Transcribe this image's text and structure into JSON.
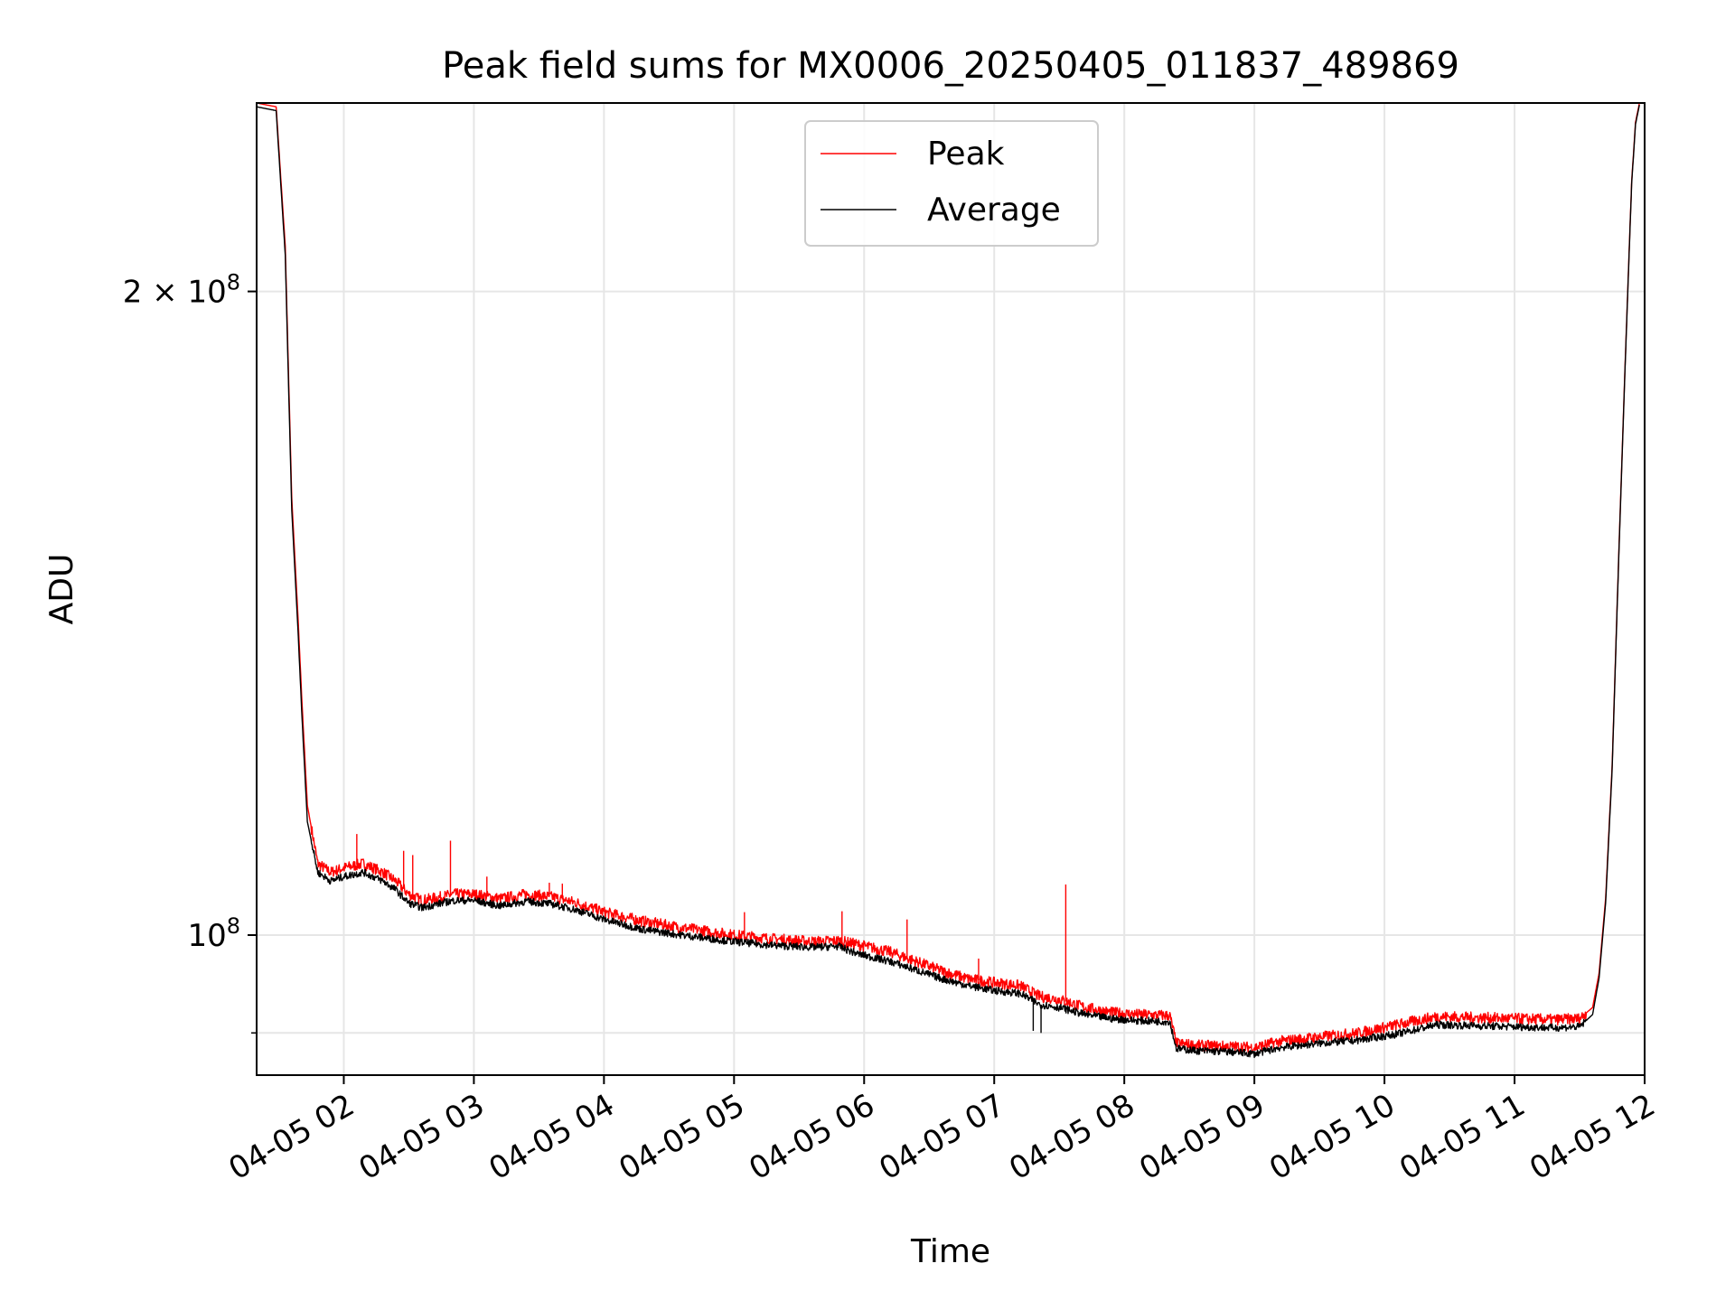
{
  "chart_data": {
    "type": "line",
    "title": "Peak field sums for MX0006_20250405_011837_489869",
    "xlabel": "Time",
    "ylabel": "ADU",
    "yscale": "log",
    "grid": true,
    "legend_position": "top-center",
    "xlim_hours": [
      1.33,
      12.0
    ],
    "ylim": [
      86000000,
      245000000
    ],
    "x_ticks": [
      {
        "value": 2,
        "label": "04-05 02"
      },
      {
        "value": 3,
        "label": "04-05 03"
      },
      {
        "value": 4,
        "label": "04-05 04"
      },
      {
        "value": 5,
        "label": "04-05 05"
      },
      {
        "value": 6,
        "label": "04-05 06"
      },
      {
        "value": 7,
        "label": "04-05 07"
      },
      {
        "value": 8,
        "label": "04-05 08"
      },
      {
        "value": 9,
        "label": "04-05 09"
      },
      {
        "value": 10,
        "label": "04-05 10"
      },
      {
        "value": 11,
        "label": "04-05 11"
      },
      {
        "value": 12,
        "label": "04-05 12"
      }
    ],
    "y_ticks": [
      {
        "value": 100000000,
        "base": "10",
        "exp": "8",
        "mantissa": ""
      },
      {
        "value": 200000000,
        "base": "10",
        "exp": "8",
        "mantissa": "2 × "
      }
    ],
    "y_minor_ticks": [
      90000000
    ],
    "series": [
      {
        "name": "Peak",
        "color": "#ff0000",
        "x_hours": [
          1.33,
          1.48,
          1.55,
          1.6,
          1.65,
          1.68,
          1.72,
          1.8,
          1.9,
          2.0,
          2.15,
          2.3,
          2.4,
          2.5,
          2.6,
          2.75,
          2.85,
          3.0,
          3.2,
          3.4,
          3.6,
          3.8,
          4.0,
          4.3,
          4.6,
          5.0,
          5.3,
          5.6,
          5.8,
          5.95,
          6.2,
          6.4,
          6.6,
          6.8,
          7.0,
          7.2,
          7.35,
          7.5,
          7.7,
          7.9,
          8.1,
          8.35,
          8.4,
          8.55,
          8.8,
          9.0,
          9.2,
          9.5,
          9.8,
          10.1,
          10.4,
          10.7,
          11.0,
          11.3,
          11.5,
          11.6,
          11.65,
          11.7,
          11.75,
          11.8,
          11.85,
          11.9,
          11.93,
          11.96
        ],
        "values": [
          245000000,
          244000000,
          210000000,
          160000000,
          140000000,
          128000000,
          115000000,
          108000000,
          107000000,
          107500000,
          108000000,
          107000000,
          106000000,
          104500000,
          103800000,
          104200000,
          104500000,
          104500000,
          104000000,
          104500000,
          104200000,
          103500000,
          102500000,
          101500000,
          100800000,
          100000000,
          99600000,
          99300000,
          99400000,
          99000000,
          98200000,
          97200000,
          96200000,
          95400000,
          95000000,
          94700000,
          93600000,
          93300000,
          92500000,
          92000000,
          91800000,
          91700000,
          89000000,
          88800000,
          88700000,
          88600000,
          89200000,
          89600000,
          90000000,
          90800000,
          91600000,
          91500000,
          91400000,
          91300000,
          91400000,
          92500000,
          96000000,
          104000000,
          120000000,
          150000000,
          185000000,
          225000000,
          240000000,
          245000000
        ]
      },
      {
        "name": "Average",
        "color": "#000000",
        "x_hours": [
          1.33,
          1.48,
          1.55,
          1.6,
          1.65,
          1.68,
          1.72,
          1.8,
          1.9,
          2.0,
          2.15,
          2.3,
          2.4,
          2.5,
          2.6,
          2.75,
          2.85,
          3.0,
          3.2,
          3.4,
          3.6,
          3.8,
          4.0,
          4.3,
          4.6,
          5.0,
          5.3,
          5.6,
          5.8,
          5.95,
          6.2,
          6.4,
          6.6,
          6.8,
          7.0,
          7.2,
          7.35,
          7.5,
          7.7,
          7.9,
          8.1,
          8.35,
          8.4,
          8.55,
          8.8,
          9.0,
          9.2,
          9.5,
          9.8,
          10.1,
          10.4,
          10.7,
          11.0,
          11.3,
          11.5,
          11.6,
          11.65,
          11.7,
          11.75,
          11.8,
          11.85,
          11.9,
          11.93,
          11.96
        ],
        "values": [
          244000000,
          243000000,
          208000000,
          158000000,
          138000000,
          126000000,
          113000000,
          107000000,
          106000000,
          106500000,
          107000000,
          106000000,
          105000000,
          103500000,
          103000000,
          103500000,
          103800000,
          103800000,
          103200000,
          103700000,
          103400000,
          102700000,
          101700000,
          100600000,
          100000000,
          99300000,
          98900000,
          98700000,
          98800000,
          98000000,
          97200000,
          96300000,
          95400000,
          94700000,
          94200000,
          93900000,
          92800000,
          92500000,
          91800000,
          91400000,
          91200000,
          91100000,
          88500000,
          88300000,
          88200000,
          88000000,
          88600000,
          89000000,
          89300000,
          89900000,
          90800000,
          90700000,
          90600000,
          90500000,
          90600000,
          91800000,
          95500000,
          103500000,
          119500000,
          149500000,
          184500000,
          224500000,
          239500000,
          244500000
        ]
      }
    ],
    "spikes": [
      {
        "series": "Peak",
        "x_hour": 2.1,
        "value": 111500000
      },
      {
        "series": "Peak",
        "x_hour": 2.46,
        "value": 109500000
      },
      {
        "series": "Peak",
        "x_hour": 2.53,
        "value": 109000000
      },
      {
        "series": "Peak",
        "x_hour": 2.82,
        "value": 110700000
      },
      {
        "series": "Peak",
        "x_hour": 3.1,
        "value": 106500000
      },
      {
        "series": "Peak",
        "x_hour": 3.58,
        "value": 105800000
      },
      {
        "series": "Peak",
        "x_hour": 3.68,
        "value": 105700000
      },
      {
        "series": "Peak",
        "x_hour": 5.08,
        "value": 102500000
      },
      {
        "series": "Peak",
        "x_hour": 5.83,
        "value": 102600000
      },
      {
        "series": "Peak",
        "x_hour": 6.33,
        "value": 101700000
      },
      {
        "series": "Peak",
        "x_hour": 6.88,
        "value": 97500000
      },
      {
        "series": "Peak",
        "x_hour": 7.55,
        "value": 105600000
      },
      {
        "series": "Average",
        "x_hour": 7.3,
        "value": 90200000
      },
      {
        "series": "Average",
        "x_hour": 7.36,
        "value": 90000000
      }
    ]
  }
}
